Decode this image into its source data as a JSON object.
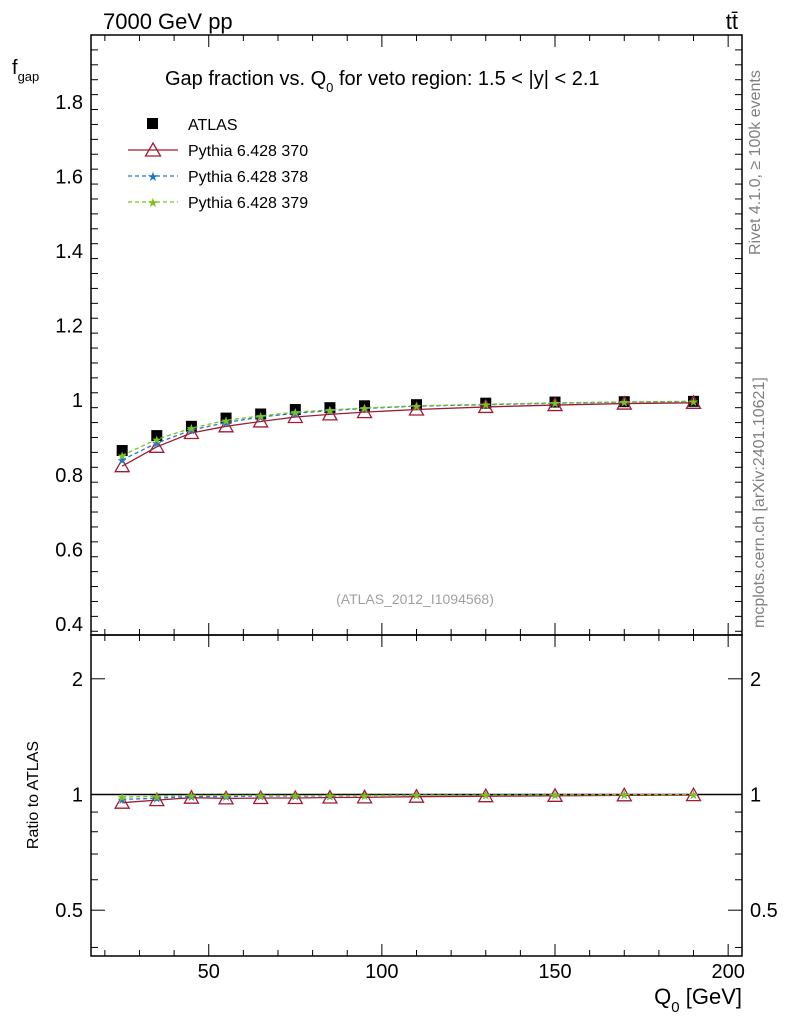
{
  "header": {
    "beam_label": "7000 GeV pp",
    "process_label": "tt̄"
  },
  "side_text": {
    "rivet": "Rivet 4.1.0, ≥ 100k events",
    "source": "mcplots.cern.ch [arXiv:2401.10621]"
  },
  "chart_data": [
    {
      "type": "scatter",
      "panel": "main",
      "title_parts": {
        "before": "Gap fraction vs. Q",
        "sub": "0",
        "after": " for veto region: 1.5 < |y| < 2.1"
      },
      "ylabel_main": "f",
      "ylabel_sub": "gap",
      "xlim": [
        16,
        204
      ],
      "ylim": [
        0.37,
        1.98
      ],
      "yticks": [
        0.4,
        0.6,
        0.8,
        1,
        1.2,
        1.4,
        1.6,
        1.8
      ],
      "ytick_labels": [
        "0.4",
        "0.6",
        "0.8",
        "1",
        "1.2",
        "1.4",
        "1.6",
        "1.8"
      ],
      "x": [
        25,
        35,
        45,
        55,
        65,
        75,
        85,
        95,
        110,
        130,
        150,
        170,
        190
      ],
      "series": [
        {
          "name": "ATLAS",
          "marker": "square",
          "color": "#000000",
          "values": [
            0.865,
            0.905,
            0.93,
            0.952,
            0.963,
            0.975,
            0.98,
            0.985,
            0.988,
            0.992,
            0.995,
            0.996,
            0.997
          ]
        },
        {
          "name": "Pythia 6.428 370",
          "marker": "triangle",
          "color": "#a01c35",
          "values": [
            0.823,
            0.875,
            0.912,
            0.93,
            0.943,
            0.955,
            0.962,
            0.968,
            0.975,
            0.982,
            0.987,
            0.991,
            0.993
          ]
        },
        {
          "name": "Pythia 6.428 378",
          "marker": "star",
          "color": "#1f77d0",
          "values": [
            0.84,
            0.885,
            0.92,
            0.94,
            0.955,
            0.965,
            0.972,
            0.978,
            0.984,
            0.988,
            0.992,
            0.995,
            0.997
          ]
        },
        {
          "name": "Pythia 6.428 379",
          "marker": "star",
          "color": "#7ac41a",
          "values": [
            0.852,
            0.895,
            0.925,
            0.946,
            0.958,
            0.968,
            0.974,
            0.979,
            0.985,
            0.989,
            0.993,
            0.995,
            0.997
          ]
        }
      ],
      "annotation": "(ATLAS_2012_I1094568)",
      "legend_position": "top-left"
    },
    {
      "type": "scatter",
      "panel": "ratio",
      "ylabel": "Ratio to ATLAS",
      "ylim_log": [
        0.38,
        2.6
      ],
      "yticks": [
        0.5,
        1,
        2
      ],
      "ytick_labels": [
        "0.5",
        "1",
        "2"
      ],
      "xticks": [
        50,
        100,
        150,
        200
      ],
      "xtick_labels": [
        "50",
        "100",
        "150",
        "200"
      ],
      "xlabel_parts": {
        "before": "Q",
        "sub": "0",
        "after": " [GeV]"
      },
      "x": [
        25,
        35,
        45,
        55,
        65,
        75,
        85,
        95,
        110,
        130,
        150,
        170,
        190
      ],
      "series": [
        {
          "name": "Pythia 6.428 370",
          "marker": "triangle",
          "color": "#a01c35",
          "values": [
            0.952,
            0.967,
            0.981,
            0.977,
            0.979,
            0.979,
            0.982,
            0.983,
            0.987,
            0.99,
            0.992,
            0.995,
            0.996
          ]
        },
        {
          "name": "Pythia 6.428 378",
          "marker": "star",
          "color": "#1f77d0",
          "values": [
            0.971,
            0.978,
            0.989,
            0.987,
            0.992,
            0.99,
            0.992,
            0.993,
            0.996,
            0.996,
            0.997,
            0.999,
            1.0
          ]
        },
        {
          "name": "Pythia 6.428 379",
          "marker": "star",
          "color": "#7ac41a",
          "values": [
            0.985,
            0.989,
            0.995,
            0.994,
            0.995,
            0.993,
            0.994,
            0.994,
            0.997,
            0.997,
            0.998,
            0.999,
            1.0
          ]
        }
      ]
    }
  ]
}
